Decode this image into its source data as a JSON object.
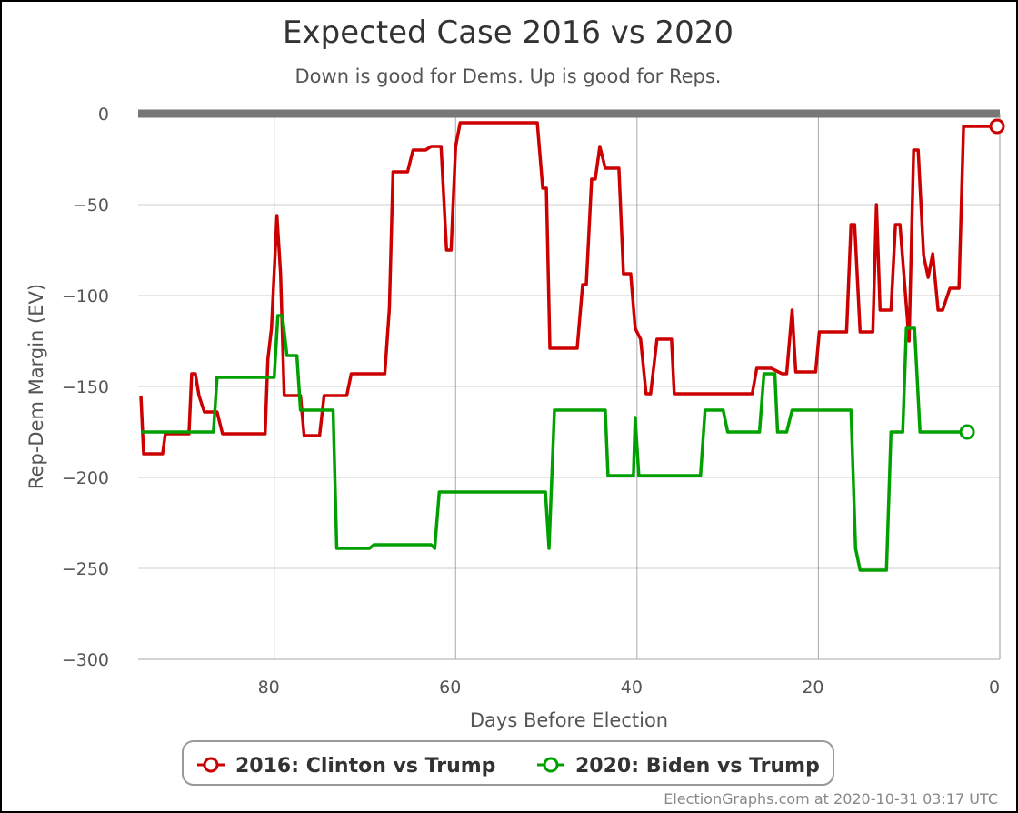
{
  "chart_data": {
    "type": "line",
    "title": "Expected Case 2016 vs 2020",
    "subtitle": "Down is good for Dems. Up is good for Reps.",
    "xlabel": "Days Before Election",
    "ylabel": "Rep-Dem Margin (EV)",
    "xlim": [
      95,
      0
    ],
    "ylim": [
      -300,
      0
    ],
    "x_ticks": [
      80,
      60,
      40,
      20,
      0
    ],
    "y_ticks": [
      0,
      -50,
      -100,
      -150,
      -200,
      -250,
      -300
    ],
    "x_tick_labels": [
      "80",
      "60",
      "40",
      "20",
      "0"
    ],
    "y_tick_labels": [
      "0",
      "−50",
      "−100",
      "−150",
      "−200",
      "−250",
      "−300"
    ],
    "grid": true,
    "legend_position": "bottom-center",
    "series": [
      {
        "name": "2016: Clinton vs Trump",
        "color": "#cc0000",
        "points": [
          [
            94.7,
            -155
          ],
          [
            94.4,
            -187
          ],
          [
            92.3,
            -187
          ],
          [
            92.0,
            -176
          ],
          [
            89.4,
            -176
          ],
          [
            89.1,
            -143
          ],
          [
            88.7,
            -143
          ],
          [
            88.3,
            -155
          ],
          [
            87.7,
            -164
          ],
          [
            86.3,
            -164
          ],
          [
            85.7,
            -176
          ],
          [
            81.0,
            -176
          ],
          [
            80.7,
            -135
          ],
          [
            80.3,
            -118
          ],
          [
            79.7,
            -56
          ],
          [
            79.3,
            -88
          ],
          [
            78.9,
            -155
          ],
          [
            77.1,
            -155
          ],
          [
            76.7,
            -177
          ],
          [
            75.0,
            -177
          ],
          [
            74.5,
            -155
          ],
          [
            72.0,
            -155
          ],
          [
            71.5,
            -143
          ],
          [
            67.8,
            -143
          ],
          [
            67.3,
            -107
          ],
          [
            66.9,
            -32
          ],
          [
            65.3,
            -32
          ],
          [
            64.7,
            -20
          ],
          [
            63.3,
            -20
          ],
          [
            62.7,
            -18
          ],
          [
            61.6,
            -18
          ],
          [
            61.0,
            -75
          ],
          [
            60.5,
            -75
          ],
          [
            60.0,
            -18
          ],
          [
            59.5,
            -5
          ],
          [
            51.0,
            -5
          ],
          [
            50.4,
            -41
          ],
          [
            50.0,
            -41
          ],
          [
            49.6,
            -129
          ],
          [
            46.6,
            -129
          ],
          [
            46.0,
            -94
          ],
          [
            45.6,
            -94
          ],
          [
            45.0,
            -36
          ],
          [
            44.6,
            -36
          ],
          [
            44.1,
            -18
          ],
          [
            43.5,
            -30
          ],
          [
            42.0,
            -30
          ],
          [
            41.5,
            -88
          ],
          [
            40.7,
            -88
          ],
          [
            40.2,
            -118
          ],
          [
            39.6,
            -124
          ],
          [
            39.0,
            -154
          ],
          [
            38.5,
            -154
          ],
          [
            37.8,
            -124
          ],
          [
            36.2,
            -124
          ],
          [
            35.9,
            -154
          ],
          [
            27.3,
            -154
          ],
          [
            26.8,
            -140
          ],
          [
            25.2,
            -140
          ],
          [
            24.0,
            -143
          ],
          [
            23.5,
            -143
          ],
          [
            22.9,
            -108
          ],
          [
            22.5,
            -142
          ],
          [
            20.3,
            -142
          ],
          [
            19.9,
            -120
          ],
          [
            16.9,
            -120
          ],
          [
            16.4,
            -61
          ],
          [
            16.0,
            -61
          ],
          [
            15.4,
            -120
          ],
          [
            14.0,
            -120
          ],
          [
            13.6,
            -50
          ],
          [
            13.2,
            -108
          ],
          [
            12.0,
            -108
          ],
          [
            11.5,
            -61
          ],
          [
            11.0,
            -61
          ],
          [
            10.0,
            -125
          ],
          [
            9.5,
            -20
          ],
          [
            9.0,
            -20
          ],
          [
            8.4,
            -78
          ],
          [
            7.9,
            -90
          ],
          [
            7.4,
            -77
          ],
          [
            6.8,
            -108
          ],
          [
            6.3,
            -108
          ],
          [
            5.5,
            -96
          ],
          [
            4.5,
            -96
          ],
          [
            4.0,
            -7
          ],
          [
            0.3,
            -7
          ]
        ]
      },
      {
        "name": "2020: Biden vs Trump",
        "color": "#00a000",
        "points": [
          [
            94.7,
            -175
          ],
          [
            86.7,
            -175
          ],
          [
            86.3,
            -145
          ],
          [
            80.0,
            -145
          ],
          [
            79.6,
            -111
          ],
          [
            79.1,
            -111
          ],
          [
            78.6,
            -133
          ],
          [
            77.5,
            -133
          ],
          [
            77.1,
            -163
          ],
          [
            73.5,
            -163
          ],
          [
            73.1,
            -239
          ],
          [
            69.5,
            -239
          ],
          [
            69.0,
            -237
          ],
          [
            62.7,
            -237
          ],
          [
            62.3,
            -239
          ],
          [
            61.8,
            -208
          ],
          [
            50.1,
            -208
          ],
          [
            49.7,
            -239
          ],
          [
            49.1,
            -163
          ],
          [
            43.5,
            -163
          ],
          [
            43.2,
            -199
          ],
          [
            40.4,
            -199
          ],
          [
            40.2,
            -167
          ],
          [
            39.8,
            -199
          ],
          [
            33.0,
            -199
          ],
          [
            32.5,
            -163
          ],
          [
            30.5,
            -163
          ],
          [
            30.0,
            -175
          ],
          [
            26.5,
            -175
          ],
          [
            26.0,
            -143
          ],
          [
            24.8,
            -143
          ],
          [
            24.5,
            -175
          ],
          [
            23.5,
            -175
          ],
          [
            22.9,
            -163
          ],
          [
            16.4,
            -163
          ],
          [
            15.9,
            -239
          ],
          [
            15.4,
            -251
          ],
          [
            12.5,
            -251
          ],
          [
            12.0,
            -175
          ],
          [
            10.7,
            -175
          ],
          [
            10.3,
            -118
          ],
          [
            9.4,
            -118
          ],
          [
            8.8,
            -175
          ],
          [
            3.6,
            -175
          ]
        ]
      }
    ]
  },
  "legend": {
    "items": [
      {
        "label": "2016: Clinton vs Trump",
        "color": "#cc0000"
      },
      {
        "label": "2020: Biden vs Trump",
        "color": "#00a000"
      }
    ]
  },
  "credit": "ElectionGraphs.com at 2020-10-31 03:17 UTC"
}
